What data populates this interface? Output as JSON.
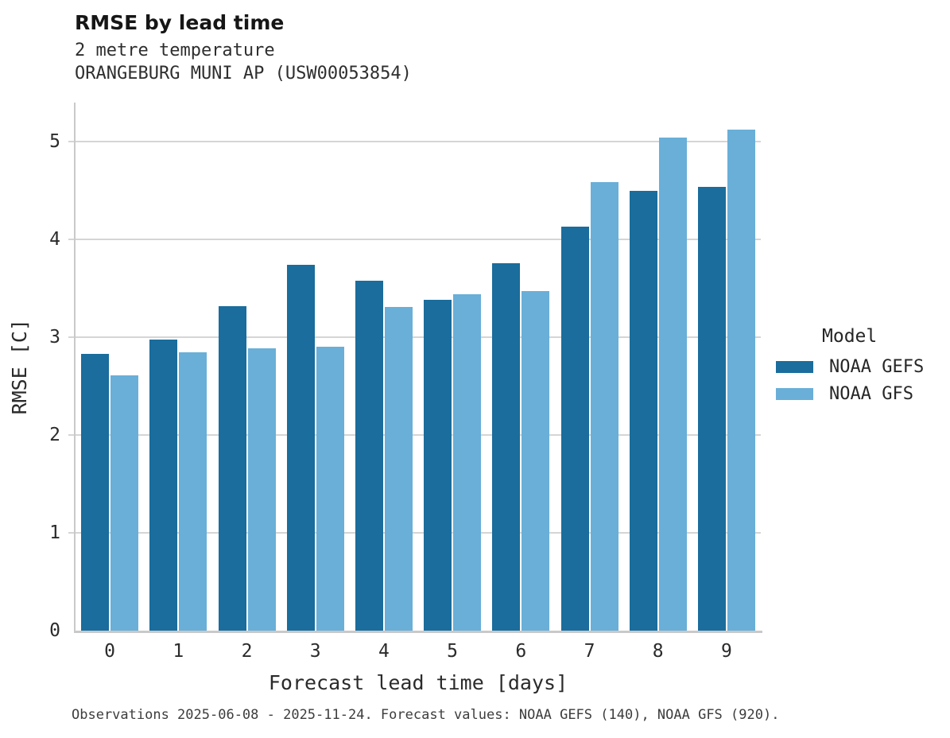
{
  "header": {
    "title": "RMSE by lead time",
    "subtitle_variable": "2 metre temperature",
    "subtitle_station": "ORANGEBURG MUNI AP (USW00053854)"
  },
  "chart_data": {
    "type": "bar",
    "grouped": true,
    "title": "RMSE by lead time",
    "xlabel": "Forecast lead time [days]",
    "ylabel": "RMSE [C]",
    "categories": [
      "0",
      "1",
      "2",
      "3",
      "4",
      "5",
      "6",
      "7",
      "8",
      "9"
    ],
    "series": [
      {
        "name": "NOAA GEFS",
        "color": "#1a6d9c",
        "values": [
          2.83,
          2.98,
          3.32,
          3.74,
          3.58,
          3.38,
          3.76,
          4.13,
          4.5,
          4.54
        ]
      },
      {
        "name": "NOAA GFS",
        "color": "#69afd8",
        "values": [
          2.61,
          2.85,
          2.89,
          2.9,
          3.31,
          3.44,
          3.47,
          4.59,
          5.04,
          5.12
        ]
      }
    ],
    "ylim": [
      0,
      5.4
    ],
    "yticks": [
      0,
      1,
      2,
      3,
      4,
      5
    ],
    "grid": "horizontal",
    "gridline_color": "#d5d5d5",
    "spine_color": "#c9c9c9",
    "legend": {
      "title": "Model",
      "position": "right"
    }
  },
  "footer": {
    "note": "Observations 2025-06-08 - 2025-11-24. Forecast values: NOAA GEFS (140), NOAA GFS (920)."
  }
}
